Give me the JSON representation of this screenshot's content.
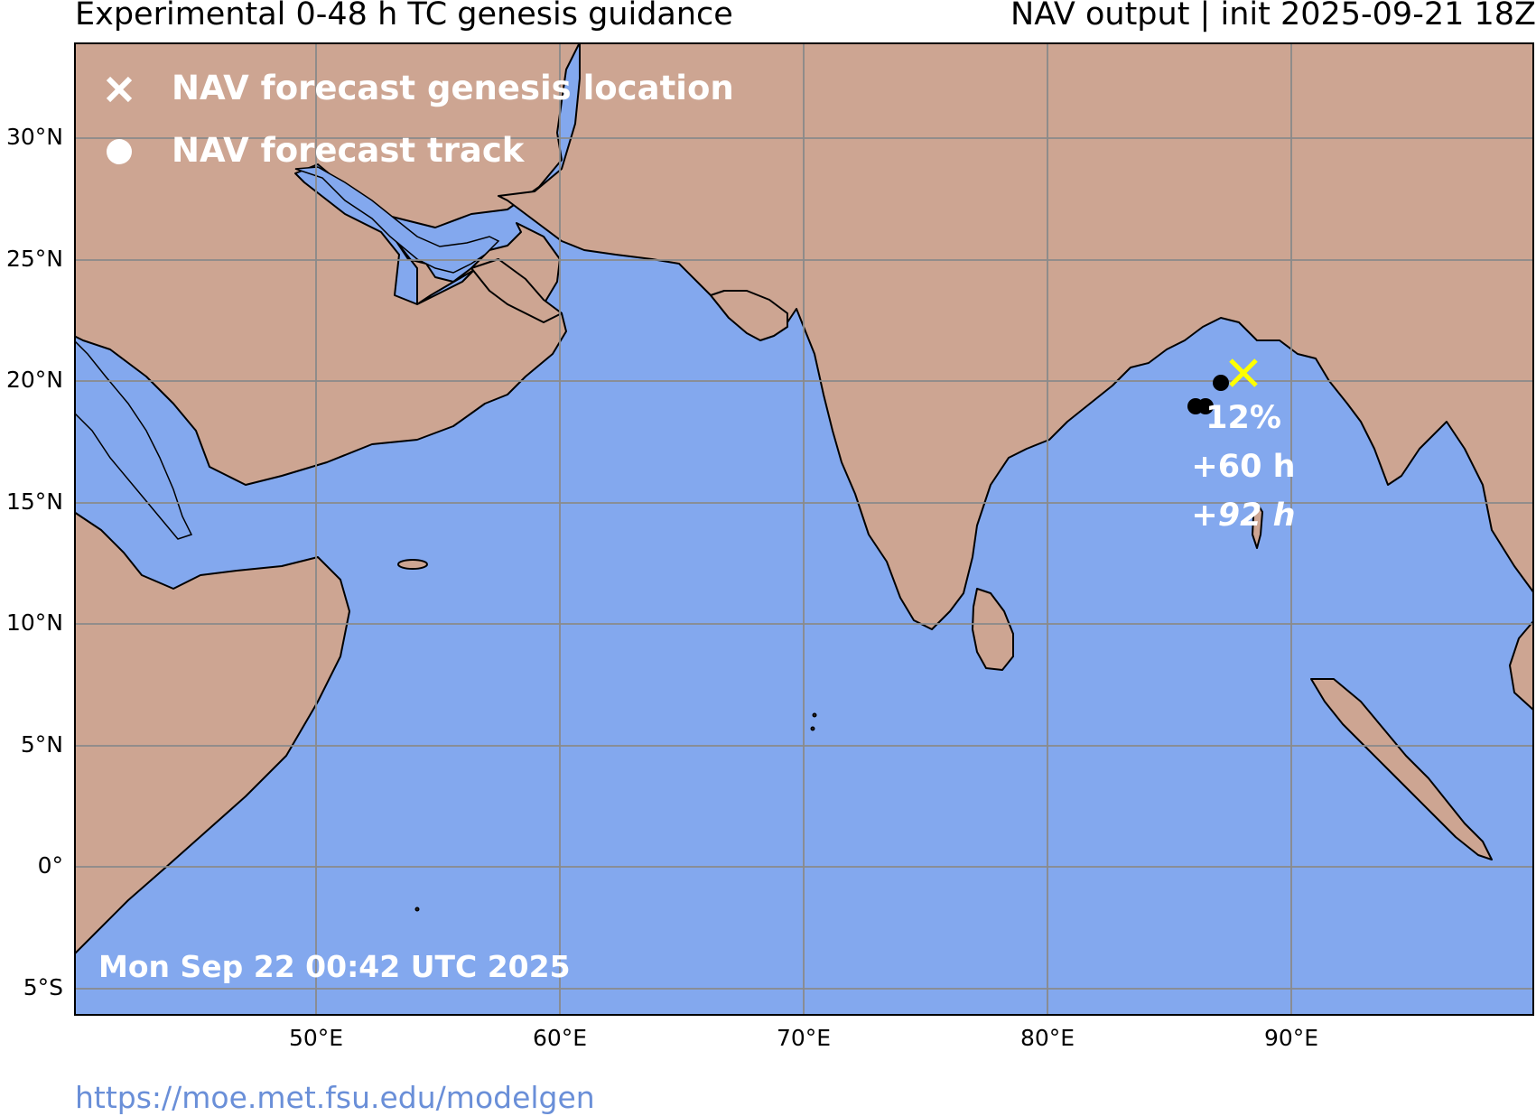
{
  "header": {
    "left_title": "Experimental 0-48 h TC genesis guidance",
    "right_title": "NAV output | init 2025-09-21 18Z"
  },
  "map": {
    "ocean_color": "#83a8ee",
    "land_color": "#cda592",
    "gridline_color": "#8a8a8a",
    "lat_ticks": [
      "30°N",
      "25°N",
      "20°N",
      "15°N",
      "10°N",
      "5°N",
      "0°",
      "5°S"
    ],
    "lon_ticks": [
      "50°E",
      "60°E",
      "70°E",
      "80°E",
      "90°E"
    ],
    "legend": {
      "genesis_label": "NAV forecast genesis location",
      "track_label": "NAV forecast track",
      "genesis_icon": "x-marker-icon",
      "track_icon": "dot-marker-icon"
    },
    "forecast": {
      "genesis_lat": 20.4,
      "genesis_lon": 88.0,
      "genesis_color": "#ffff00",
      "track": [
        {
          "lat": 20.0,
          "lon": 87.0
        },
        {
          "lat": 19.0,
          "lon": 86.5
        },
        {
          "lat": 19.0,
          "lon": 86.0
        }
      ],
      "probability": "12%",
      "lead_time": "+60 h",
      "lead_time_end": "+92 h"
    },
    "timestamp": "Mon Sep 22 00:42 UTC 2025"
  },
  "footer": {
    "url": "https://moe.met.fsu.edu/modelgen"
  }
}
